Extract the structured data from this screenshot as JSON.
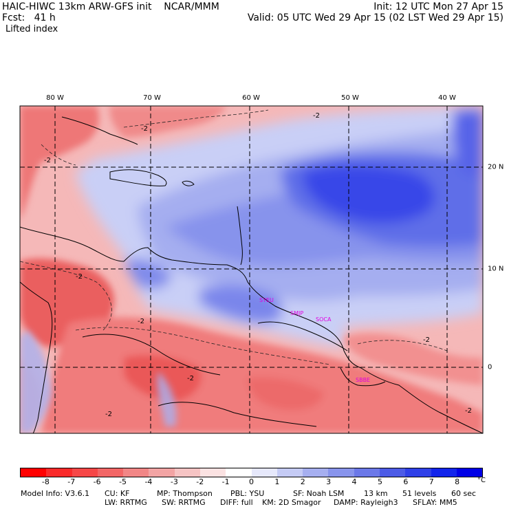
{
  "header": {
    "line1_left": "HAIC-HIWC 13km ARW-GFS init    NCAR/MMM",
    "line1_right": "Init: 12 UTC Mon 27 Apr 15",
    "line2_left": "Fcst:   41 h",
    "line2_right": "Valid: 05 UTC Wed 29 Apr 15 (02 LST Wed 29 Apr 15)",
    "field": "Lifted index"
  },
  "map": {
    "lon_labels": [
      "80 W",
      "70 W",
      "60 W",
      "50 W",
      "40 W"
    ],
    "lat_labels": [
      "20 N",
      "10 N",
      "0"
    ],
    "stations": [
      "SYEU",
      "SMJP",
      "SOCA",
      "SBBE"
    ],
    "contour_label": "-2"
  },
  "colorbar": {
    "colors": [
      "#ff0000",
      "#fa2a2a",
      "#f64747",
      "#f26666",
      "#f18686",
      "#f2a4a4",
      "#f6c4c4",
      "#fbe2e2",
      "#ffffff",
      "#e6e8fb",
      "#c5cbf5",
      "#a6aff0",
      "#8894ec",
      "#6b78e8",
      "#4c5be6",
      "#2f40e8",
      "#1224eb",
      "#0000e6"
    ],
    "labels": [
      "-8",
      "-7",
      "-6",
      "-5",
      "-4",
      "-3",
      "-2",
      "-1",
      "0",
      "1",
      "2",
      "3",
      "4",
      "5",
      "6",
      "7",
      "8"
    ],
    "unit": "°C"
  },
  "footer": {
    "line1": [
      "Model Info: V3.6.1",
      "CU: KF",
      "MP: Thompson",
      "PBL: YSU",
      "SF: Noah LSM",
      "13 km",
      "51 levels",
      "60 sec"
    ],
    "line2": [
      "LW: RRTMG",
      "SW: RRTMG",
      "DIFF: full",
      "KM: 2D Smagor",
      "DAMP: Rayleigh3",
      "SFLAY: MM5"
    ]
  }
}
